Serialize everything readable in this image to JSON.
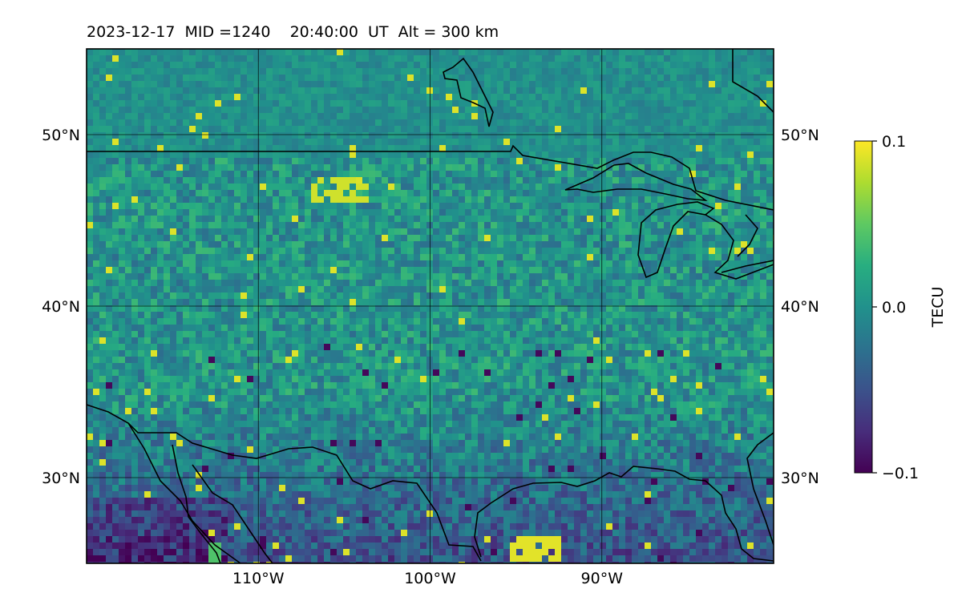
{
  "chart_data": {
    "type": "heatmap",
    "title": "2023-12-17  MID =1240    20:40:00  UT  Alt = 300 km",
    "lon_range": [
      -120,
      -80
    ],
    "lat_range": [
      25,
      55
    ],
    "x_ticks": [
      {
        "lon": -110,
        "label": "110°W"
      },
      {
        "lon": -100,
        "label": "100°W"
      },
      {
        "lon": -90,
        "label": "90°W"
      }
    ],
    "y_ticks": [
      {
        "lat": 50,
        "label": "50°N"
      },
      {
        "lat": 40,
        "label": "40°N"
      },
      {
        "lat": 30,
        "label": "30°N"
      }
    ],
    "colorbar": {
      "label": "TECU",
      "colormap": "viridis",
      "min": -0.1,
      "max": 0.1,
      "ticks": [
        {
          "value": 0.1,
          "label": "0.1"
        },
        {
          "value": 0.0,
          "label": "0.0"
        },
        {
          "value": -0.1,
          "label": "−0.1"
        }
      ]
    },
    "grid": true,
    "field_description": "dTEC map, values mostly near 0.0 TECU; lower (negative) values dominate south of ~35°N; scattered positive (yellow) patches near 47°N 105°W and along the Gulf coast ~26°N."
  }
}
